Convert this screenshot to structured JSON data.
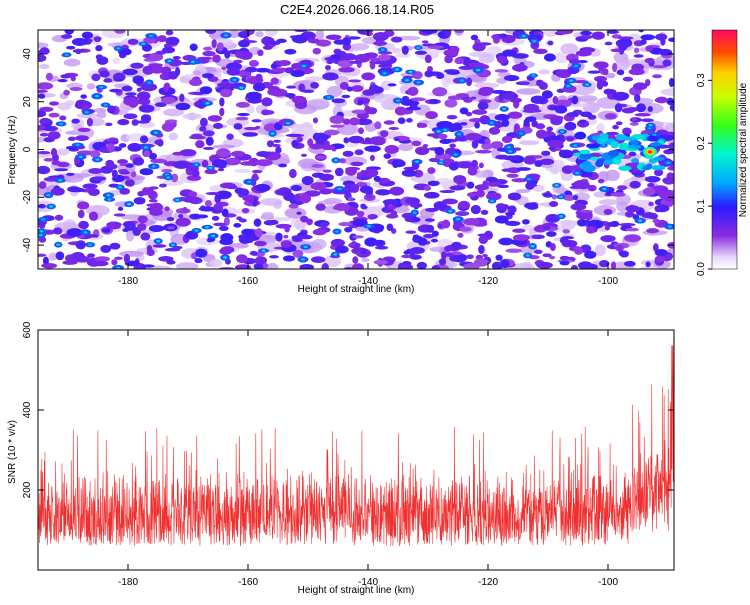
{
  "title": "C2E4.2026.066.18.14.R05",
  "chart_data": [
    {
      "type": "heatmap",
      "xlabel": "Height of straight line (km)",
      "ylabel": "Frequency (Hz)",
      "xlim": [
        -195,
        -89
      ],
      "ylim": [
        -50,
        50
      ],
      "x_ticks": [
        -180,
        -160,
        -140,
        -120,
        -100
      ],
      "y_ticks": [
        -40,
        -20,
        0,
        20,
        40
      ],
      "colorbar": {
        "label": "Normalized spectral amplitude",
        "range": [
          0,
          0.38
        ],
        "ticks": [
          0.0,
          0.1,
          0.2,
          0.3
        ]
      },
      "peak": {
        "x": -93,
        "y": -1,
        "value": 0.36
      },
      "colors": {
        "low": "#ffffff",
        "mid": "#7a1fe6",
        "high": "#ff0033"
      }
    },
    {
      "type": "line",
      "xlabel": "Height of straight line (km)",
      "ylabel": "SNR (10 * v/v)",
      "xlim": [
        -195,
        -89
      ],
      "ylim": [
        0,
        600
      ],
      "x_ticks": [
        -180,
        -160,
        -140,
        -120,
        -100
      ],
      "y_ticks": [
        200,
        400,
        600
      ],
      "series_color": "#f03030",
      "baseline_range": [
        60,
        260
      ],
      "max_value": 590,
      "max_at_x": -90
    }
  ]
}
